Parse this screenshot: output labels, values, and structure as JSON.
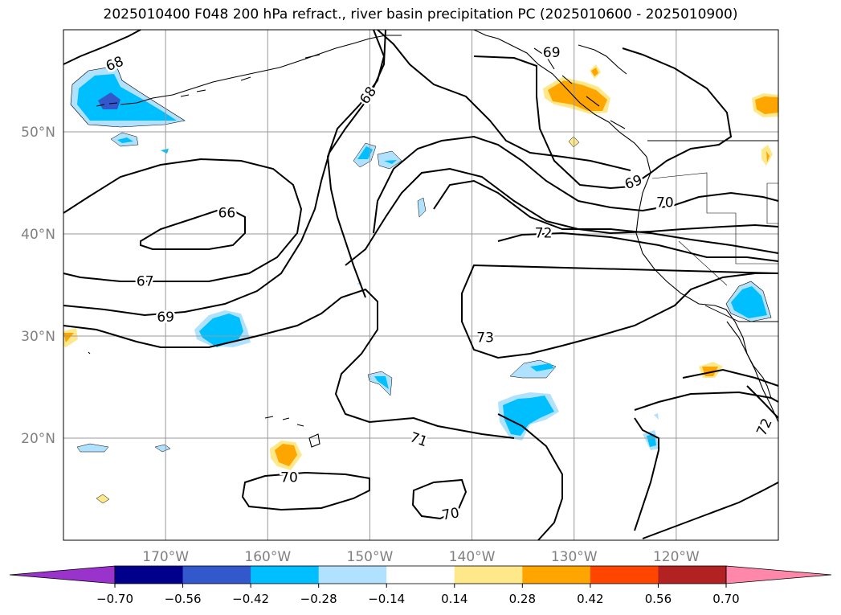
{
  "chart_data": {
    "type": "contour-map",
    "title": "2025010400 F048 200 hPa refract., river basin precipitation PC (2025010600 - 2025010900)",
    "lon_range": [
      -180,
      -110
    ],
    "lat_range": [
      10,
      60
    ],
    "x_ticks": [
      {
        "lon": -170,
        "label": "170°W"
      },
      {
        "lon": -160,
        "label": "160°W"
      },
      {
        "lon": -150,
        "label": "150°W"
      },
      {
        "lon": -140,
        "label": "140°W"
      },
      {
        "lon": -130,
        "label": "130°W"
      },
      {
        "lon": -120,
        "label": "120°W"
      }
    ],
    "y_ticks": [
      {
        "lat": 20,
        "label": "20°N"
      },
      {
        "lat": 30,
        "label": "30°N"
      },
      {
        "lat": 40,
        "label": "40°N"
      },
      {
        "lat": 50,
        "label": "50°N"
      }
    ],
    "grid": true,
    "contour_labels": [
      {
        "text": "68",
        "lon": -175,
        "lat": 56.7,
        "rot": -22
      },
      {
        "text": "68",
        "lon": -150.2,
        "lat": 53.6,
        "rot": -55
      },
      {
        "text": "69",
        "lon": -132.2,
        "lat": 57.8,
        "rot": 0
      },
      {
        "text": "69",
        "lon": -124.2,
        "lat": 45.1,
        "rot": -20
      },
      {
        "text": "70",
        "lon": -121.1,
        "lat": 43.1,
        "rot": 0
      },
      {
        "text": "66",
        "lon": -164,
        "lat": 42.1,
        "rot": 0
      },
      {
        "text": "72",
        "lon": -133,
        "lat": 40.1,
        "rot": 0
      },
      {
        "text": "67",
        "lon": -172,
        "lat": 35.4,
        "rot": 0
      },
      {
        "text": "69",
        "lon": -170,
        "lat": 31.9,
        "rot": 0
      },
      {
        "text": "73",
        "lon": -138.7,
        "lat": 29.9,
        "rot": 0
      },
      {
        "text": "71",
        "lon": -145.2,
        "lat": 19.9,
        "rot": 20
      },
      {
        "text": "70",
        "lon": -157.9,
        "lat": 16.2,
        "rot": 0
      },
      {
        "text": "70",
        "lon": -142.1,
        "lat": 12.6,
        "rot": -10
      },
      {
        "text": "72",
        "lon": -111.4,
        "lat": 21.1,
        "rot": -65
      }
    ],
    "colorbar": {
      "levels": [
        -0.7,
        -0.56,
        -0.42,
        -0.28,
        -0.14,
        0.14,
        0.28,
        0.42,
        0.56,
        0.7
      ],
      "tick_labels": [
        "−0.70",
        "−0.56",
        "−0.42",
        "−0.28",
        "−0.14",
        "0.14",
        "0.28",
        "0.42",
        "0.56",
        "0.70"
      ],
      "colors": [
        "#9933cc",
        "#00008b",
        "#3358cc",
        "#00bfff",
        "#b0e2ff",
        "#ffffff",
        "#ffe88a",
        "#ffa500",
        "#ff4500",
        "#b22222",
        "#ff88aa"
      ],
      "extend": "both"
    }
  }
}
